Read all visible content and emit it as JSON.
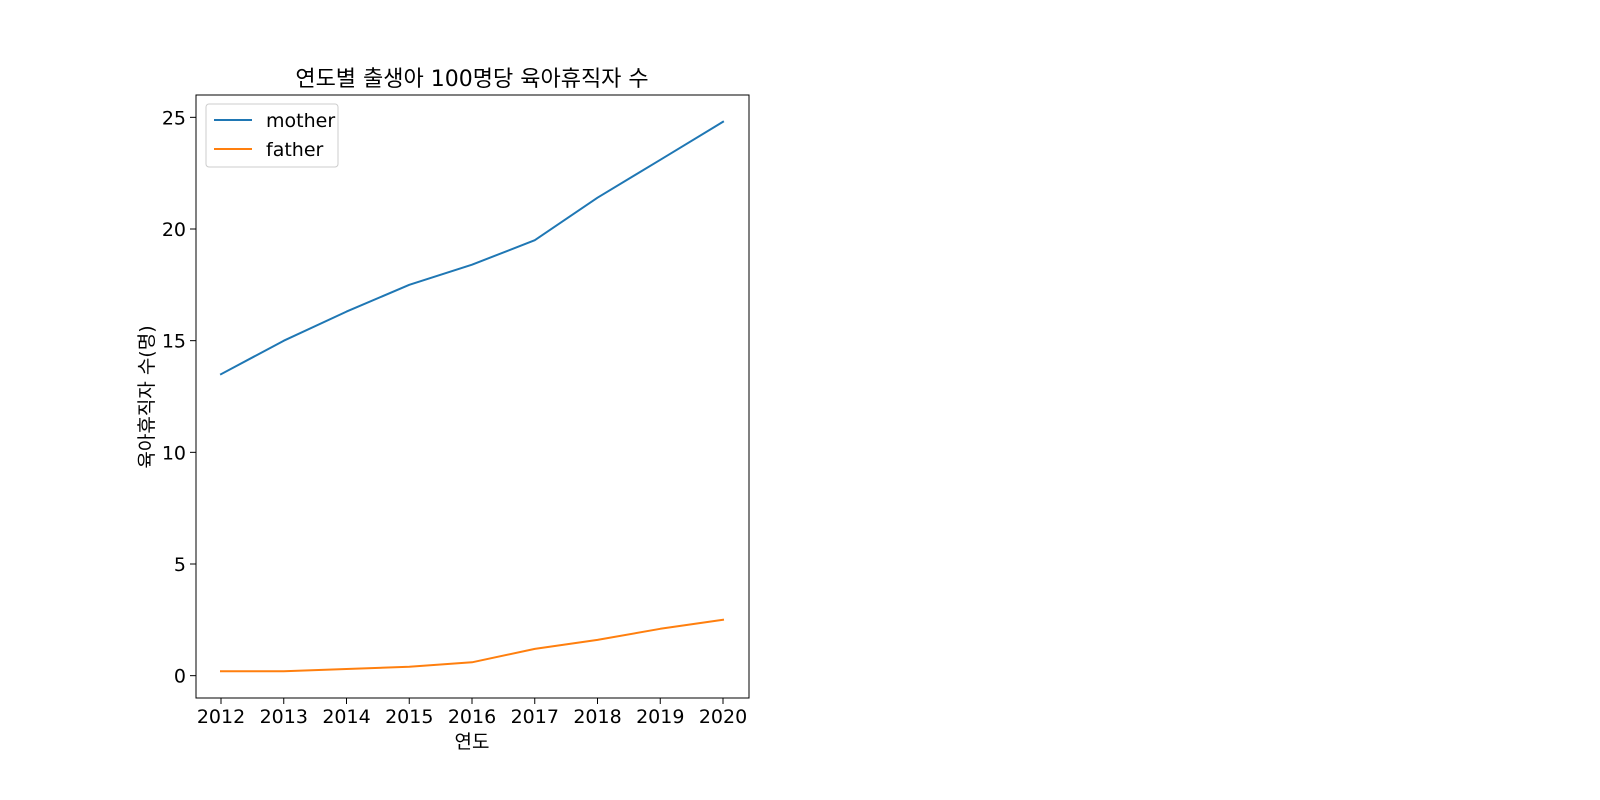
{
  "chart_data": {
    "type": "line",
    "title": "연도별 출생아 100명당 육아휴직자 수",
    "xlabel": "연도",
    "ylabel": "육아휴직자 수(명)",
    "x": [
      2012,
      2013,
      2014,
      2015,
      2016,
      2017,
      2018,
      2019,
      2020
    ],
    "x_ticks": [
      "2012",
      "2013",
      "2014",
      "2015",
      "2016",
      "2017",
      "2018",
      "2019",
      "2020"
    ],
    "y_ticks": [
      "0",
      "5",
      "10",
      "15",
      "20",
      "25"
    ],
    "ylim": [
      -1,
      26
    ],
    "grid": false,
    "legend_position": "upper-left",
    "series": [
      {
        "name": "mother",
        "color": "#1f77b4",
        "values": [
          13.5,
          15.0,
          16.3,
          17.5,
          18.4,
          19.5,
          21.4,
          23.1,
          24.8
        ]
      },
      {
        "name": "father",
        "color": "#ff7f0e",
        "values": [
          0.2,
          0.2,
          0.3,
          0.4,
          0.6,
          1.2,
          1.6,
          2.1,
          2.5
        ]
      }
    ]
  }
}
